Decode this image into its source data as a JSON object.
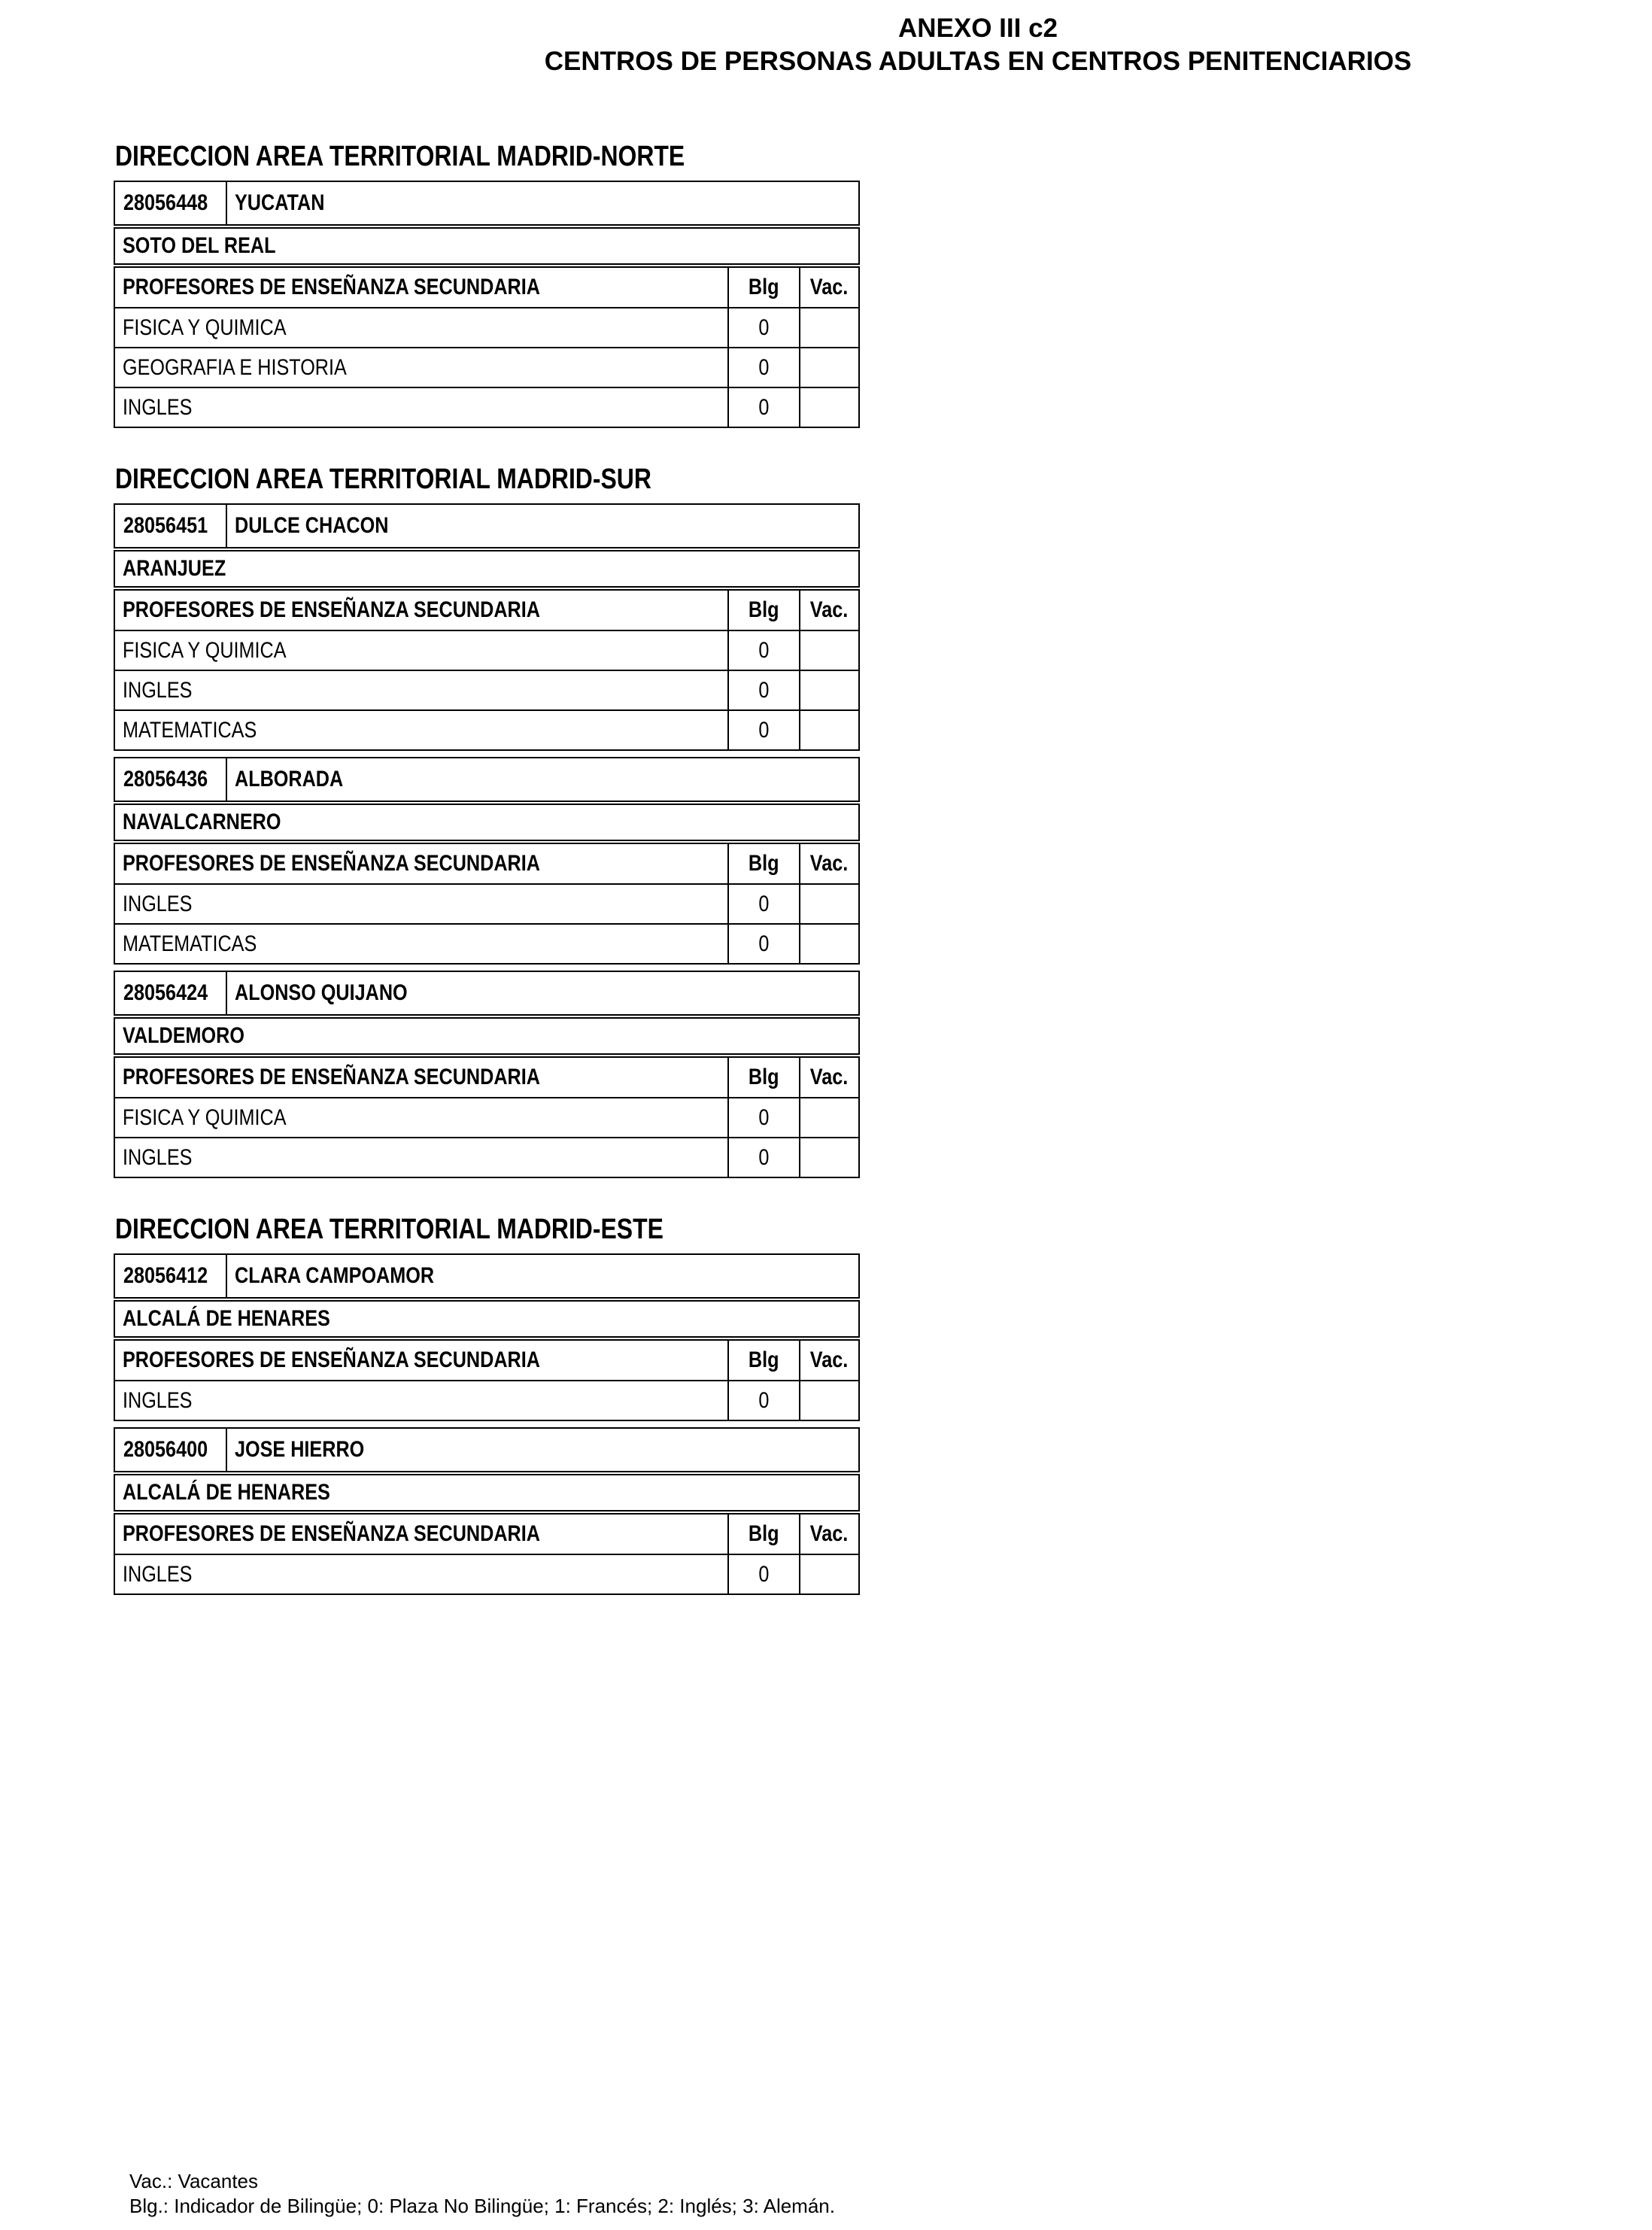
{
  "colors": {
    "ink": "#000000",
    "paper": "#ffffff"
  },
  "title": {
    "line1": "ANEXO III c2",
    "line2": "CENTROS DE PERSONAS ADULTAS EN CENTROS PENITENCIARIOS"
  },
  "labels": {
    "group_header": "PROFESORES DE ENSEÑANZA SECUNDARIA",
    "blg": "Blg",
    "vac": "Vac."
  },
  "sections": [
    {
      "heading": "DIRECCION AREA TERRITORIAL MADRID-NORTE",
      "centers": [
        {
          "code": "28056448",
          "name": "YUCATAN",
          "locality": "SOTO DEL REAL",
          "specialties": [
            {
              "name": "FISICA Y QUIMICA",
              "blg": "0",
              "vac": ""
            },
            {
              "name": "GEOGRAFIA E HISTORIA",
              "blg": "0",
              "vac": ""
            },
            {
              "name": "INGLES",
              "blg": "0",
              "vac": ""
            }
          ]
        }
      ]
    },
    {
      "heading": "DIRECCION AREA TERRITORIAL MADRID-SUR",
      "centers": [
        {
          "code": "28056451",
          "name": "DULCE CHACON",
          "locality": "ARANJUEZ",
          "specialties": [
            {
              "name": "FISICA Y QUIMICA",
              "blg": "0",
              "vac": ""
            },
            {
              "name": "INGLES",
              "blg": "0",
              "vac": ""
            },
            {
              "name": "MATEMATICAS",
              "blg": "0",
              "vac": ""
            }
          ]
        },
        {
          "code": "28056436",
          "name": "ALBORADA",
          "locality": "NAVALCARNERO",
          "specialties": [
            {
              "name": "INGLES",
              "blg": "0",
              "vac": ""
            },
            {
              "name": "MATEMATICAS",
              "blg": "0",
              "vac": ""
            }
          ]
        },
        {
          "code": "28056424",
          "name": "ALONSO QUIJANO",
          "locality": "VALDEMORO",
          "specialties": [
            {
              "name": "FISICA Y QUIMICA",
              "blg": "0",
              "vac": ""
            },
            {
              "name": "INGLES",
              "blg": "0",
              "vac": ""
            }
          ]
        }
      ]
    },
    {
      "heading": "DIRECCION AREA TERRITORIAL MADRID-ESTE",
      "centers": [
        {
          "code": "28056412",
          "name": "CLARA CAMPOAMOR",
          "locality": "ALCALÁ DE HENARES",
          "specialties": [
            {
              "name": "INGLES",
              "blg": "0",
              "vac": ""
            }
          ]
        },
        {
          "code": "28056400",
          "name": "JOSE HIERRO",
          "locality": "ALCALÁ DE HENARES",
          "specialties": [
            {
              "name": "INGLES",
              "blg": "0",
              "vac": ""
            }
          ]
        }
      ]
    }
  ],
  "footer": {
    "line1": "Vac.: Vacantes",
    "line2": "Blg.: Indicador de Bilingüe; 0: Plaza No Bilingüe; 1: Francés; 2: Inglés; 3: Alemán."
  }
}
